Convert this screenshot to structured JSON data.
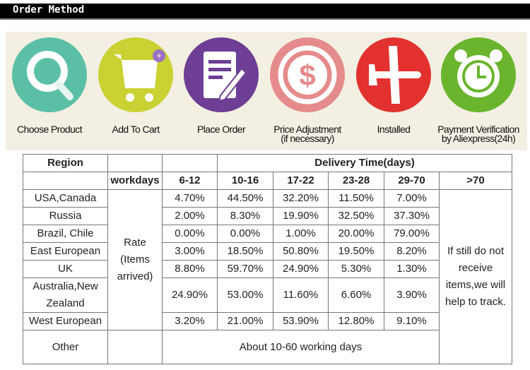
{
  "header": {
    "title": "Order Method"
  },
  "steps": [
    {
      "label": "Choose Product",
      "icon": "search-icon",
      "color": "#5bbfa5"
    },
    {
      "label": "Add To Cart",
      "icon": "cart-icon",
      "color": "#c9d232"
    },
    {
      "label": "Place Order",
      "icon": "order-form-icon",
      "color": "#6d3e94"
    },
    {
      "label": "Price  Adjustment",
      "sub": "(if necessary)",
      "icon": "dollar-icon",
      "color": "#e58b8b"
    },
    {
      "label": "Installed",
      "icon": "airplane-icon",
      "color": "#e2312f"
    },
    {
      "label": "Payment Verification",
      "sub": "by Aliexpress(24h)",
      "icon": "alarm-clock-icon",
      "color": "#6ab52d"
    }
  ],
  "table": {
    "region_header": "Region",
    "delivery_header": "Delivery Time(days)",
    "workdays": "workdays",
    "ranges": [
      "6-12",
      "10-16",
      "17-22",
      "23-28",
      "29-70",
      ">70"
    ],
    "rate_label": "Rate (Items arrived)",
    "rows": [
      {
        "region": "USA,Canada",
        "values": [
          "4.70%",
          "44.50%",
          "32.20%",
          "11.50%",
          "7.00%"
        ]
      },
      {
        "region": "Russia",
        "values": [
          "2.00%",
          "8.30%",
          "19.90%",
          "32.50%",
          "37.30%"
        ]
      },
      {
        "region": "Brazil, Chile",
        "values": [
          "0.00%",
          "0.00%",
          "1.00%",
          "20.00%",
          "79.00%"
        ]
      },
      {
        "region": "East European",
        "values": [
          "3.00%",
          "18.50%",
          "50.80%",
          "19.50%",
          "8.20%"
        ]
      },
      {
        "region": "UK",
        "values": [
          "8.80%",
          "59.70%",
          "24.90%",
          "5.30%",
          "1.30%"
        ]
      },
      {
        "region": "Australia,New Zealand",
        "values": [
          "24.90%",
          "53.00%",
          "11.60%",
          "6.60%",
          "3.90%"
        ]
      },
      {
        "region": "West European",
        "values": [
          "3.20%",
          "21.00%",
          "53.90%",
          "12.80%",
          "9.10%"
        ]
      }
    ],
    "other_region": "Other",
    "other_text": "About 10-60 working days",
    "over70_note": "If still do not receive items,we will help to track."
  }
}
